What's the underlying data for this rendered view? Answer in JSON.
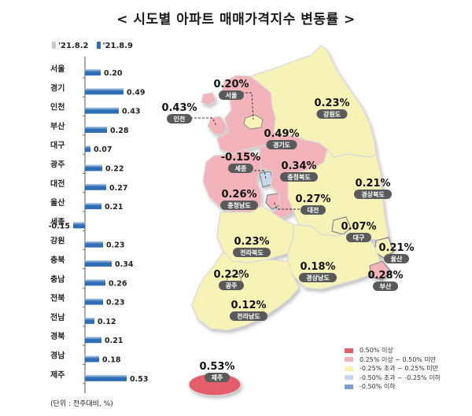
{
  "title": "< 시도별 아파트 매매가격지수 변동률 >",
  "legend": {
    "prev_label": "'21.8.2",
    "curr_label": "'21.8.9"
  },
  "note": "(단위 : 전주대비, %)",
  "colors": {
    "bar_dark": "#2f6db5",
    "bar_light": "#bfd2ea",
    "bar_prev": "#c9c9c9",
    "red": "#e35d6a",
    "pink": "#f2b3bb",
    "yellow": "#f7f3b6",
    "light_blue": "#c7d8ee",
    "blue": "#7d9fd6"
  },
  "chart_data": {
    "type": "bar",
    "orientation": "horizontal",
    "categories": [
      "서울",
      "경기",
      "인천",
      "부산",
      "대구",
      "광주",
      "대전",
      "울산",
      "세종",
      "강원",
      "충북",
      "충남",
      "전북",
      "전남",
      "경북",
      "경남",
      "제주"
    ],
    "series": [
      {
        "name": "'21.8.9",
        "values": [
          0.2,
          0.49,
          0.43,
          0.28,
          0.07,
          0.22,
          0.27,
          0.21,
          -0.15,
          0.23,
          0.34,
          0.26,
          0.23,
          0.12,
          0.21,
          0.18,
          0.53
        ]
      }
    ],
    "value_labels": [
      "0.20",
      "0.49",
      "0.43",
      "0.28",
      "0.07",
      "0.22",
      "0.27",
      "0.21",
      "-0.15",
      "0.23",
      "0.34",
      "0.26",
      "0.23",
      "0.12",
      "0.21",
      "0.18",
      "0.53"
    ]
  },
  "map_legend": [
    {
      "label": "0.50% 이상",
      "color": "#e35d6a"
    },
    {
      "label": "0.25% 이상 ~ 0.50% 미만",
      "color": "#f2b3bb"
    },
    {
      "label": "-0.25% 초과 ~ 0.25% 미만",
      "color": "#f7f3b6"
    },
    {
      "label": "-0.50% 초과 ~ -0.25% 이하",
      "color": "#c7d8ee"
    },
    {
      "label": "-0.50% 이하",
      "color": "#7d9fd6"
    }
  ],
  "map_regions": [
    {
      "name": "서울",
      "value": "0.20%"
    },
    {
      "name": "인천",
      "value": "0.43%"
    },
    {
      "name": "경기도",
      "value": "0.49%"
    },
    {
      "name": "강원도",
      "value": "0.23%"
    },
    {
      "name": "세종",
      "value": "-0.15%"
    },
    {
      "name": "충청북도",
      "value": "0.34%"
    },
    {
      "name": "충청남도",
      "value": "0.26%"
    },
    {
      "name": "대전",
      "value": "0.27%"
    },
    {
      "name": "경상북도",
      "value": "0.21%"
    },
    {
      "name": "대구",
      "value": "0.07%"
    },
    {
      "name": "울산",
      "value": "0.21%"
    },
    {
      "name": "전라북도",
      "value": "0.23%"
    },
    {
      "name": "경상남도",
      "value": "0.18%"
    },
    {
      "name": "부산",
      "value": "0.28%"
    },
    {
      "name": "광주",
      "value": "0.22%"
    },
    {
      "name": "전라남도",
      "value": "0.12%"
    },
    {
      "name": "제주",
      "value": "0.53%"
    }
  ]
}
